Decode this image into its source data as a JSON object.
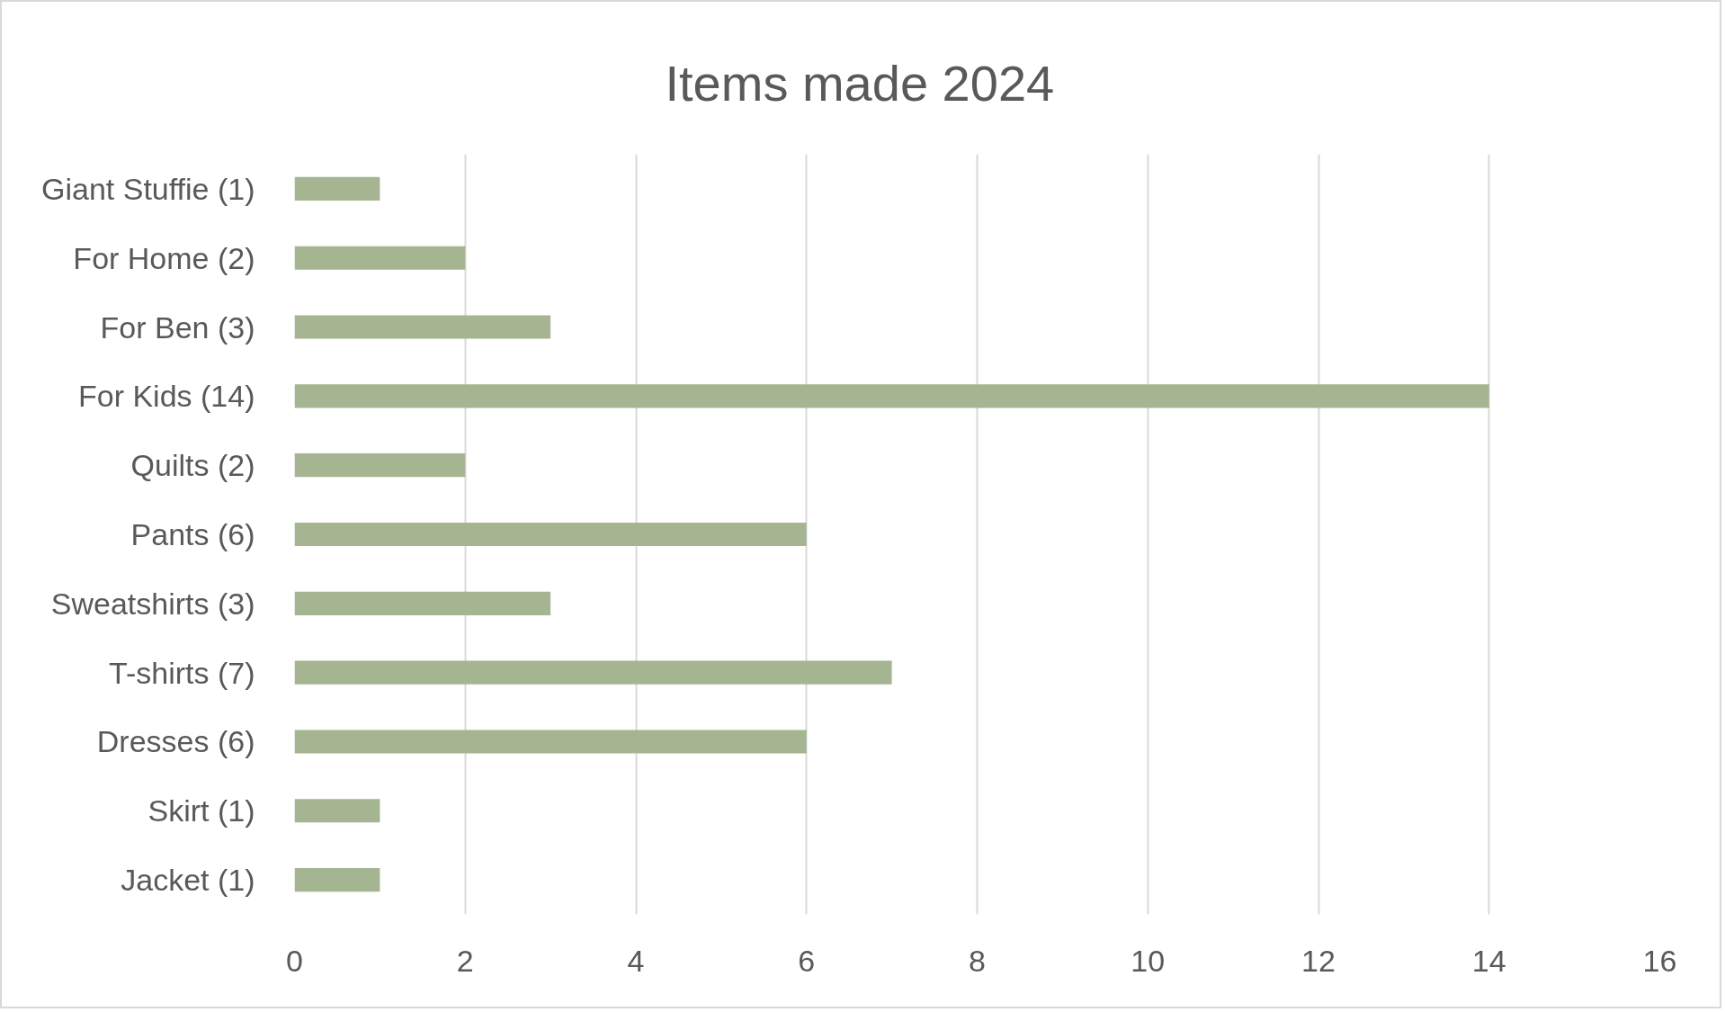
{
  "chart_data": {
    "type": "bar",
    "orientation": "horizontal",
    "title": "Items made 2024",
    "categories": [
      "Giant Stuffie (1)",
      "For Home (2)",
      "For Ben (3)",
      "For Kids (14)",
      "Quilts (2)",
      "Pants (6)",
      "Sweatshirts (3)",
      "T-shirts (7)",
      "Dresses (6)",
      "Skirt (1)",
      "Jacket (1)"
    ],
    "values": [
      1,
      2,
      3,
      14,
      2,
      6,
      3,
      7,
      6,
      1,
      1
    ],
    "color": "#a5b592",
    "xlim": [
      0,
      16
    ],
    "xticks": [
      0,
      2,
      4,
      6,
      8,
      10,
      12,
      14,
      16
    ],
    "grid": "x"
  }
}
